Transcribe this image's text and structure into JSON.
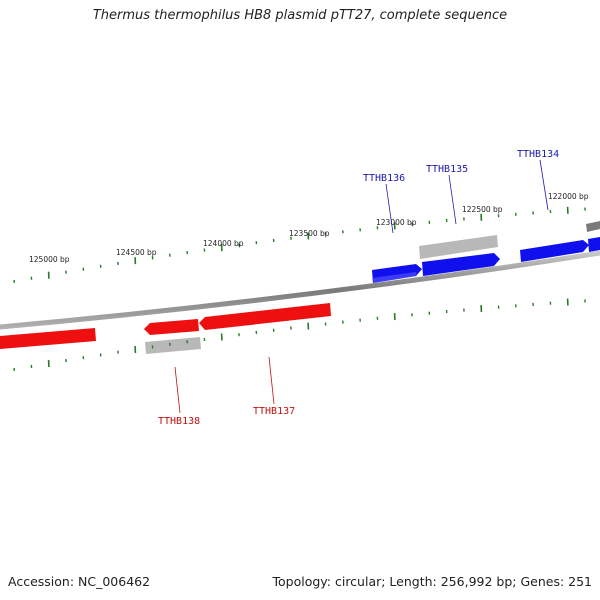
{
  "title": "Thermus thermophilus HB8 plasmid pTT27, complete sequence",
  "footer": {
    "accession": "Accession: NC_006462",
    "summary": "Topology: circular; Length: 256,992 bp; Genes: 251"
  },
  "colors": {
    "forward_gene": "#1010ee",
    "reverse_gene": "#ee1010",
    "pseudo_gene": "#b8b8b8",
    "tick": "#2a7a2a",
    "backbone": "#8a8a8a",
    "forward_label": "#1a1ab0",
    "reverse_label": "#c01010"
  },
  "position_labels": [
    "125000 bp",
    "124500 bp",
    "124000 bp",
    "123500 bp",
    "123000 bp",
    "122500 bp",
    "122000 bp"
  ],
  "gene_labels": {
    "forward": [
      "TTHB136",
      "TTHB135",
      "TTHB134"
    ],
    "reverse": [
      "TTHB138",
      "TTHB137"
    ]
  }
}
